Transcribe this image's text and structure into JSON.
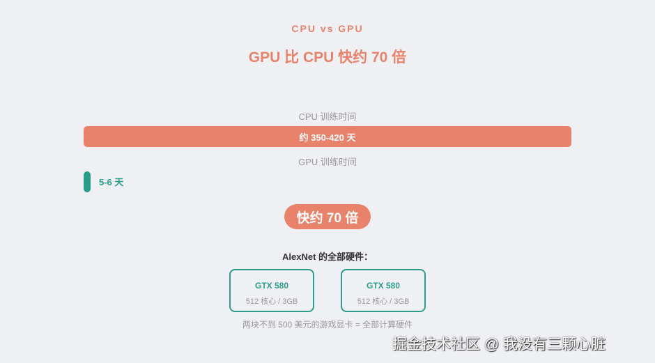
{
  "header": {
    "eyebrow": "CPU vs GPU",
    "title": "GPU 比 CPU 快约 70 倍"
  },
  "comparison": {
    "cpu_label": "CPU 训练时间",
    "cpu_value": "约 350-420 天",
    "gpu_label": "GPU 训练时间",
    "gpu_value": "5-6 天",
    "speedup": "快约 70 倍",
    "colors": {
      "cpu": "#e8826a",
      "gpu": "#2a9d88"
    }
  },
  "hardware": {
    "heading": "AlexNet 的全部硬件：",
    "cards": [
      {
        "name": "GTX 580",
        "spec": "512 核心 / 3GB"
      },
      {
        "name": "GTX 580",
        "spec": "512 核心 / 3GB"
      }
    ],
    "note": "两块不到 500 美元的游戏显卡 = 全部计算硬件"
  },
  "watermark": "掘金技术社区 @ 我没有三颗心脏"
}
